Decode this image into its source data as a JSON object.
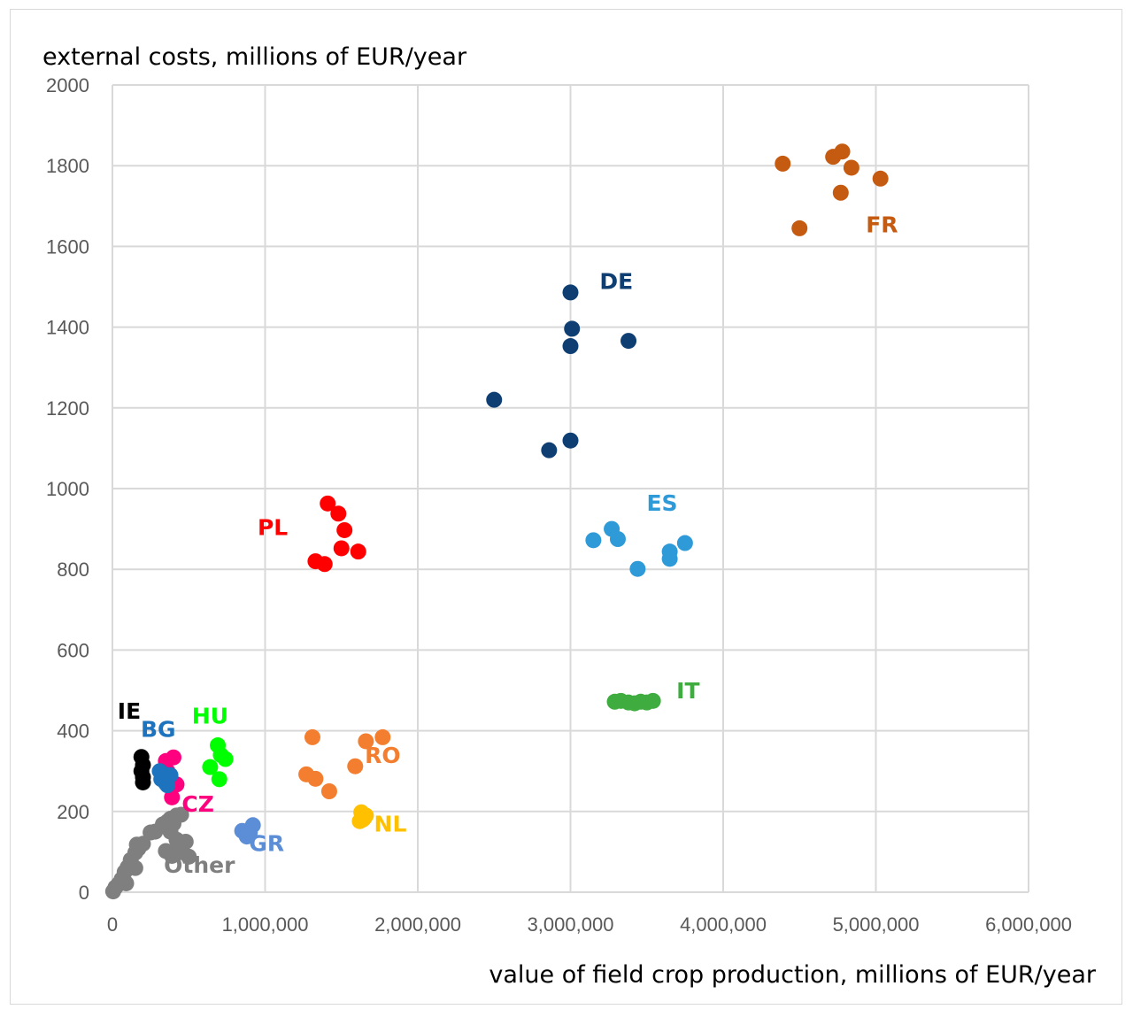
{
  "chart_data": {
    "type": "scatter",
    "title": "",
    "xlabel": "value of field crop production, millions of EUR/year",
    "ylabel": "external costs, millions of EUR/year",
    "xlim": [
      0,
      6000000
    ],
    "ylim": [
      0,
      2000
    ],
    "x_ticks": [
      0,
      1000000,
      2000000,
      3000000,
      4000000,
      5000000,
      6000000
    ],
    "x_tick_labels": [
      "0",
      "1,000,000",
      "2,000,000",
      "3,000,000",
      "4,000,000",
      "5,000,000",
      "6,000,000"
    ],
    "y_ticks": [
      0,
      200,
      400,
      600,
      800,
      1000,
      1200,
      1400,
      1600,
      1800,
      2000
    ],
    "y_tick_labels": [
      "0",
      "200",
      "400",
      "600",
      "800",
      "1000",
      "1200",
      "1400",
      "1600",
      "1800",
      "2000"
    ],
    "grid": true,
    "legend": "none (series labelled directly next to point clusters)",
    "series": [
      {
        "name": "FR",
        "color": "#c55a11",
        "label_at": [
          5040000,
          1635
        ],
        "points": [
          [
            4390000,
            1805
          ],
          [
            4720000,
            1822
          ],
          [
            4780000,
            1835
          ],
          [
            4840000,
            1795
          ],
          [
            4770000,
            1733
          ],
          [
            5030000,
            1768
          ],
          [
            4500000,
            1645
          ]
        ]
      },
      {
        "name": "DE",
        "color": "#0f3e73",
        "label_at": [
          3300000,
          1495
        ],
        "points": [
          [
            3000000,
            1486
          ],
          [
            3010000,
            1396
          ],
          [
            3000000,
            1353
          ],
          [
            3380000,
            1366
          ],
          [
            2500000,
            1220
          ],
          [
            3000000,
            1119
          ],
          [
            2860000,
            1095
          ]
        ]
      },
      {
        "name": "ES",
        "color": "#2e9ad8",
        "label_at": [
          3600000,
          945
        ],
        "points": [
          [
            3150000,
            872
          ],
          [
            3270000,
            900
          ],
          [
            3310000,
            875
          ],
          [
            3440000,
            801
          ],
          [
            3650000,
            844
          ],
          [
            3650000,
            826
          ],
          [
            3750000,
            865
          ]
        ]
      },
      {
        "name": "IT",
        "color": "#3eac3e",
        "label_at": [
          3770000,
          480
        ],
        "points": [
          [
            3290000,
            472
          ],
          [
            3330000,
            474
          ],
          [
            3380000,
            470
          ],
          [
            3420000,
            468
          ],
          [
            3460000,
            472
          ],
          [
            3500000,
            470
          ],
          [
            3540000,
            474
          ]
        ]
      },
      {
        "name": "PL",
        "color": "#ff0000",
        "label_at": [
          1050000,
          885
        ],
        "points": [
          [
            1410000,
            963
          ],
          [
            1480000,
            938
          ],
          [
            1520000,
            897
          ],
          [
            1500000,
            852
          ],
          [
            1330000,
            820
          ],
          [
            1390000,
            813
          ],
          [
            1610000,
            844
          ]
        ]
      },
      {
        "name": "RO",
        "color": "#f37e2f",
        "label_at": [
          1770000,
          320
        ],
        "points": [
          [
            1310000,
            384
          ],
          [
            1660000,
            374
          ],
          [
            1770000,
            384
          ],
          [
            1270000,
            292
          ],
          [
            1330000,
            281
          ],
          [
            1420000,
            250
          ],
          [
            1590000,
            312
          ]
        ]
      },
      {
        "name": "NL",
        "color": "#ffc000",
        "label_at": [
          1820000,
          150
        ],
        "points": [
          [
            1630000,
            198
          ],
          [
            1660000,
            190
          ],
          [
            1640000,
            180
          ],
          [
            1620000,
            176
          ],
          [
            1650000,
            184
          ]
        ]
      },
      {
        "name": "HU",
        "color": "#00ff00",
        "label_at": [
          640000,
          418
        ],
        "points": [
          [
            690000,
            364
          ],
          [
            710000,
            340
          ],
          [
            740000,
            330
          ],
          [
            640000,
            310
          ],
          [
            700000,
            280
          ]
        ]
      },
      {
        "name": "GR",
        "color": "#5b8ed6",
        "label_at": [
          1010000,
          102
        ],
        "points": [
          [
            920000,
            166
          ],
          [
            850000,
            152
          ],
          [
            880000,
            138
          ],
          [
            900000,
            148
          ]
        ]
      },
      {
        "name": "CZ",
        "color": "#ff007f",
        "label_at": [
          560000,
          200
        ],
        "points": [
          [
            400000,
            334
          ],
          [
            350000,
            325
          ],
          [
            420000,
            267
          ],
          [
            390000,
            235
          ],
          [
            360000,
            300
          ]
        ]
      },
      {
        "name": "BG",
        "color": "#1e73be",
        "label_at": [
          300000,
          385
        ],
        "points": [
          [
            310000,
            300
          ],
          [
            340000,
            292
          ],
          [
            380000,
            290
          ],
          [
            320000,
            280
          ],
          [
            350000,
            270
          ],
          [
            360000,
            265
          ]
        ]
      },
      {
        "name": "IE",
        "color": "#000000",
        "label_at": [
          110000,
          430
        ],
        "points": [
          [
            190000,
            335
          ],
          [
            200000,
            315
          ],
          [
            190000,
            300
          ],
          [
            200000,
            285
          ],
          [
            200000,
            272
          ]
        ]
      },
      {
        "name": "Other",
        "color": "#7f7f7f",
        "label_at": [
          570000,
          48
        ],
        "points": [
          [
            5000,
            2
          ],
          [
            20000,
            12
          ],
          [
            40000,
            20
          ],
          [
            60000,
            32
          ],
          [
            90000,
            22
          ],
          [
            80000,
            50
          ],
          [
            100000,
            62
          ],
          [
            150000,
            60
          ],
          [
            120000,
            80
          ],
          [
            150000,
            98
          ],
          [
            170000,
            108
          ],
          [
            200000,
            120
          ],
          [
            250000,
            148
          ],
          [
            280000,
            150
          ],
          [
            330000,
            168
          ],
          [
            380000,
            182
          ],
          [
            420000,
            190
          ],
          [
            450000,
            192
          ],
          [
            400000,
            170
          ],
          [
            380000,
            150
          ],
          [
            420000,
            130
          ],
          [
            460000,
            122
          ],
          [
            480000,
            125
          ],
          [
            350000,
            102
          ],
          [
            390000,
            90
          ],
          [
            430000,
            98
          ],
          [
            500000,
            88
          ],
          [
            440000,
            110
          ],
          [
            360000,
            175
          ],
          [
            160000,
            118
          ]
        ]
      }
    ]
  }
}
